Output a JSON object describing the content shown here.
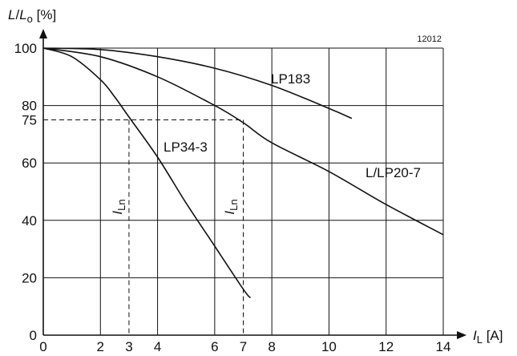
{
  "chart_data": {
    "type": "line",
    "figure_id": "12012",
    "y_axis": {
      "symbol": "L",
      "sep": "/",
      "denominator": "L",
      "denominator_sub": "o",
      "unit": "[%]"
    },
    "x_axis": {
      "symbol": "I",
      "sub": "L",
      "unit": "[A]"
    },
    "xlim": [
      0,
      14
    ],
    "ylim": [
      0,
      100
    ],
    "x_ticks": [
      0,
      2,
      3,
      4,
      6,
      7,
      8,
      10,
      12,
      14
    ],
    "y_ticks": [
      0,
      20,
      40,
      60,
      75,
      80,
      100
    ],
    "grid": true,
    "series": [
      {
        "name": "LP34-3",
        "points": [
          [
            0,
            100
          ],
          [
            1,
            97
          ],
          [
            2,
            89
          ],
          [
            2.5,
            83
          ],
          [
            3,
            76
          ],
          [
            4,
            62
          ],
          [
            5,
            46
          ],
          [
            6,
            31
          ],
          [
            7,
            16
          ],
          [
            7.25,
            13
          ]
        ]
      },
      {
        "name": "L/LP20-7",
        "points": [
          [
            0,
            100
          ],
          [
            2,
            97
          ],
          [
            4,
            90
          ],
          [
            6,
            80
          ],
          [
            7,
            74
          ],
          [
            8,
            67
          ],
          [
            10,
            57
          ],
          [
            12,
            45.5
          ],
          [
            14,
            35
          ]
        ]
      },
      {
        "name": "LP183",
        "points": [
          [
            0,
            100
          ],
          [
            2,
            99.5
          ],
          [
            4,
            97
          ],
          [
            6,
            93
          ],
          [
            8,
            87
          ],
          [
            10,
            79
          ],
          [
            10.8,
            75.5
          ]
        ]
      }
    ],
    "annotations": [
      {
        "symbol": "I",
        "sub": "Ln",
        "x": 3,
        "y": 75
      },
      {
        "symbol": "I",
        "sub": "Ln",
        "x": 7,
        "y": 75
      }
    ]
  }
}
